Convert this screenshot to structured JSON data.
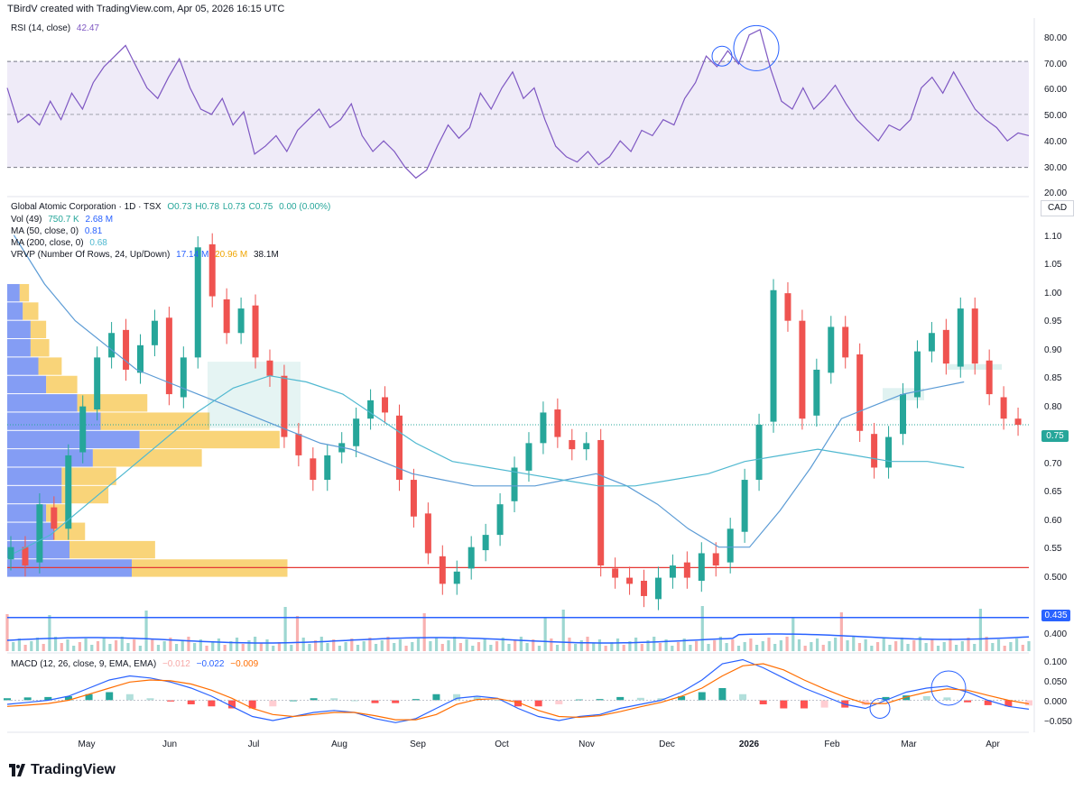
{
  "header": {
    "credit": "TBirdV created with TradingView.com, Apr 05, 2026 16:15 UTC"
  },
  "rsi": {
    "label": "RSI (14, close)",
    "value": "42.47",
    "color": "#7e57c2",
    "axis_ticks": [
      "80.00",
      "70.00",
      "60.00",
      "50.00",
      "40.00",
      "30.00",
      "20.00"
    ]
  },
  "main": {
    "symbol_line": "Global Atomic Corporation · 1D · TSX",
    "ohlc": {
      "o": "O0.73",
      "h": "H0.78",
      "l": "L0.73",
      "c": "C0.75",
      "chg": "0.00 (0.00%)"
    },
    "vol": {
      "label": "Vol (49)",
      "v1": "750.7 K",
      "v2": "2.68 M"
    },
    "ma50": {
      "label": "MA (50, close, 0)",
      "value": "0.81"
    },
    "ma200": {
      "label": "MA (200, close, 0)",
      "value": "0.68"
    },
    "vrvp": {
      "label": "VRVP (Number Of Rows, 24, Up/Down)",
      "up": "17.14 M",
      "down": "20.96 M",
      "total": "38.1M"
    },
    "currency": "CAD",
    "last_price_tag": "0.75",
    "support_tag": "0.435",
    "axis_ticks": [
      "1.10",
      "1.05",
      "1.00",
      "0.95",
      "0.90",
      "0.85",
      "0.80",
      "0.75",
      "0.70",
      "0.65",
      "0.60",
      "0.55",
      "0.500",
      "0.435",
      "0.400"
    ]
  },
  "macd": {
    "label": "MACD (12, 26, close, 9, EMA, EMA)",
    "hist": "−0.012",
    "macd": "−0.022",
    "signal": "−0.009",
    "axis_ticks": [
      "0.100",
      "0.050",
      "0.000",
      "−0.050"
    ]
  },
  "x_axis": [
    "May",
    "Jun",
    "Jul",
    "Aug",
    "Sep",
    "Oct",
    "Nov",
    "Dec",
    "2026",
    "Feb",
    "Mar",
    "Apr"
  ],
  "brand": "TradingView",
  "colors": {
    "up": "#26a69a",
    "down": "#ef5350",
    "ma50": "#5b9bd5",
    "ma200": "#4fb8d0",
    "vrvp_up": "#5b7cf0",
    "vrvp_down": "#f7c64c",
    "resistance": "#e53935",
    "support": "#2962ff"
  },
  "chart_data": [
    {
      "type": "line",
      "title": "RSI (14, close)",
      "x_range": [
        "2025-04-01",
        "2026-04-03"
      ],
      "ylim": [
        20,
        85
      ],
      "bands": {
        "upper": 70,
        "middle": 50,
        "lower": 30
      },
      "series": [
        {
          "name": "RSI (14, close)",
          "values": [
            60,
            47,
            50,
            46,
            55,
            48,
            58,
            52,
            62,
            68,
            72,
            76,
            68,
            60,
            56,
            64,
            71,
            60,
            52,
            50,
            56,
            46,
            51,
            35,
            38,
            42,
            36,
            44,
            48,
            52,
            45,
            48,
            54,
            42,
            36,
            40,
            36,
            30,
            26,
            29,
            38,
            46,
            41,
            45,
            58,
            52,
            60,
            66,
            56,
            60,
            48,
            38,
            34,
            32,
            36,
            31,
            34,
            40,
            36,
            44,
            42,
            48,
            46,
            56,
            62,
            72,
            68,
            74,
            69,
            80,
            82,
            67,
            55,
            52,
            60,
            52,
            56,
            61,
            54,
            48,
            44,
            40,
            46,
            44,
            48,
            60,
            64,
            58,
            66,
            59,
            52,
            48,
            45,
            40,
            43,
            42
          ]
        }
      ],
      "last_value": 42.47
    },
    {
      "type": "candlestick",
      "title": "Global Atomic Corporation · 1D · TSX",
      "x_range": [
        "2025-04-01",
        "2026-04-03"
      ],
      "ylim": [
        0.38,
        1.12
      ],
      "ohlc_last": {
        "o": 0.73,
        "h": 0.78,
        "l": 0.73,
        "c": 0.75
      },
      "close": [
        0.55,
        0.52,
        0.62,
        0.58,
        0.7,
        0.78,
        0.86,
        0.9,
        0.84,
        0.88,
        0.92,
        0.8,
        0.86,
        1.04,
        0.96,
        0.9,
        0.94,
        0.86,
        0.83,
        0.73,
        0.7,
        0.66,
        0.7,
        0.72,
        0.76,
        0.79,
        0.77,
        0.66,
        0.6,
        0.54,
        0.49,
        0.51,
        0.55,
        0.57,
        0.62,
        0.68,
        0.72,
        0.77,
        0.73,
        0.71,
        0.72,
        0.52,
        0.5,
        0.49,
        0.47,
        0.5,
        0.52,
        0.5,
        0.54,
        0.52,
        0.58,
        0.66,
        0.75,
        0.97,
        0.92,
        0.76,
        0.84,
        0.91,
        0.86,
        0.74,
        0.68,
        0.73,
        0.8,
        0.87,
        0.9,
        0.85,
        0.94,
        0.85,
        0.8,
        0.76,
        0.75
      ],
      "ma50": [
        1.06,
        0.98,
        0.92,
        0.88,
        0.84,
        0.82,
        0.8,
        0.78,
        0.76,
        0.74,
        0.72,
        0.71,
        0.69,
        0.67,
        0.66,
        0.65,
        0.65,
        0.65,
        0.66,
        0.67,
        0.65,
        0.62,
        0.58,
        0.55,
        0.55,
        0.61,
        0.68,
        0.76,
        0.78,
        0.8,
        0.81,
        0.82
      ],
      "ma200": [
        0.54,
        0.57,
        0.62,
        0.67,
        0.72,
        0.77,
        0.81,
        0.83,
        0.82,
        0.8,
        0.76,
        0.72,
        0.69,
        0.68,
        0.67,
        0.66,
        0.65,
        0.65,
        0.66,
        0.67,
        0.69,
        0.7,
        0.71,
        0.7,
        0.69,
        0.69,
        0.68
      ],
      "vrvp_rows": [
        {
          "price": 0.515,
          "up": 0.8,
          "down": 1.0
        },
        {
          "price": 0.545,
          "up": 0.4,
          "down": 0.55
        },
        {
          "price": 0.575,
          "up": 0.3,
          "down": 0.2
        },
        {
          "price": 0.605,
          "up": 0.25,
          "down": 0.15
        },
        {
          "price": 0.635,
          "up": 0.35,
          "down": 0.3
        },
        {
          "price": 0.665,
          "up": 0.35,
          "down": 0.35
        },
        {
          "price": 0.695,
          "up": 0.55,
          "down": 0.7
        },
        {
          "price": 0.725,
          "up": 0.85,
          "down": 0.9
        },
        {
          "price": 0.755,
          "up": 0.6,
          "down": 0.7
        },
        {
          "price": 0.785,
          "up": 0.45,
          "down": 0.45
        },
        {
          "price": 0.815,
          "up": 0.25,
          "down": 0.2
        },
        {
          "price": 0.845,
          "up": 0.2,
          "down": 0.15
        },
        {
          "price": 0.875,
          "up": 0.15,
          "down": 0.12
        },
        {
          "price": 0.905,
          "up": 0.15,
          "down": 0.1
        },
        {
          "price": 0.935,
          "up": 0.1,
          "down": 0.1
        },
        {
          "price": 0.965,
          "up": 0.08,
          "down": 0.06
        }
      ],
      "levels": {
        "resistance": 0.5165,
        "support": 0.435,
        "last": 0.75
      },
      "volume_hint": "Vol (49) 750.7 K / 2.68 M"
    },
    {
      "type": "line",
      "title": "MACD (12, 26, close, 9, EMA, EMA)",
      "x_range": [
        "2025-04-01",
        "2026-04-03"
      ],
      "ylim": [
        -0.07,
        0.11
      ],
      "series": [
        {
          "name": "MACD",
          "values": [
            -0.01,
            -0.005,
            0.0,
            0.01,
            0.03,
            0.05,
            0.06,
            0.055,
            0.045,
            0.03,
            0.01,
            -0.015,
            -0.04,
            -0.05,
            -0.04,
            -0.03,
            -0.025,
            -0.03,
            -0.045,
            -0.055,
            -0.045,
            -0.02,
            0.005,
            0.01,
            0.005,
            -0.02,
            -0.04,
            -0.05,
            -0.04,
            -0.035,
            -0.02,
            -0.01,
            0.0,
            0.02,
            0.05,
            0.09,
            0.1,
            0.08,
            0.055,
            0.03,
            0.01,
            -0.01,
            -0.02,
            0.0,
            0.02,
            0.03,
            0.035,
            0.02,
            0.0,
            -0.015,
            -0.022
          ]
        },
        {
          "name": "Signal",
          "values": [
            -0.015,
            -0.012,
            -0.008,
            0.0,
            0.015,
            0.03,
            0.045,
            0.05,
            0.048,
            0.04,
            0.025,
            0.005,
            -0.02,
            -0.035,
            -0.04,
            -0.035,
            -0.03,
            -0.03,
            -0.038,
            -0.048,
            -0.048,
            -0.035,
            -0.01,
            0.002,
            0.004,
            -0.005,
            -0.025,
            -0.04,
            -0.042,
            -0.038,
            -0.028,
            -0.016,
            -0.005,
            0.01,
            0.03,
            0.06,
            0.085,
            0.09,
            0.075,
            0.05,
            0.028,
            0.008,
            -0.008,
            -0.008,
            0.008,
            0.02,
            0.028,
            0.025,
            0.012,
            0.0,
            -0.009
          ]
        }
      ],
      "last_values": {
        "histogram": -0.012,
        "macd": -0.022,
        "signal": -0.009
      }
    }
  ]
}
